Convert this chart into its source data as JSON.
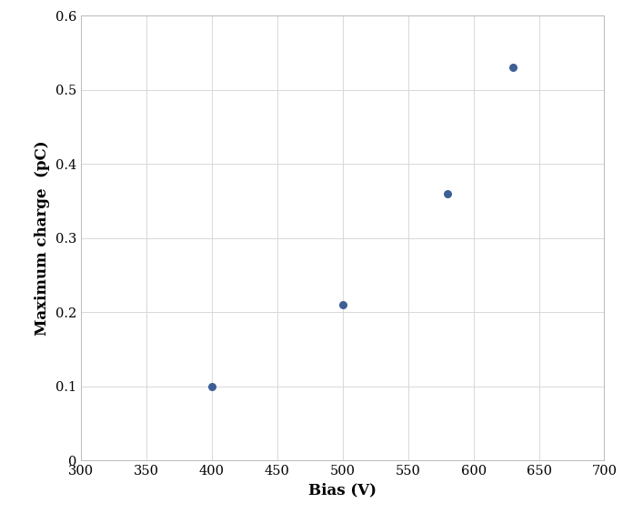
{
  "x": [
    400,
    500,
    580,
    630
  ],
  "y": [
    0.1,
    0.21,
    0.36,
    0.53
  ],
  "marker_color": "#3d5f96",
  "marker_size": 30,
  "marker_style": "o",
  "xlabel": "Bias (V)",
  "ylabel": "Maximum charge  (pC)",
  "xlim": [
    300,
    700
  ],
  "ylim": [
    0,
    0.6
  ],
  "xticks": [
    300,
    350,
    400,
    450,
    500,
    550,
    600,
    650,
    700
  ],
  "yticks": [
    0,
    0.1,
    0.2,
    0.3,
    0.4,
    0.5,
    0.6
  ],
  "grid_color": "#d8d8d8",
  "grid_linewidth": 0.7,
  "background_color": "#ffffff",
  "axes_background_color": "#ffffff",
  "xlabel_fontsize": 12,
  "ylabel_fontsize": 12,
  "tick_fontsize": 10.5,
  "font_family": "DejaVu Serif"
}
